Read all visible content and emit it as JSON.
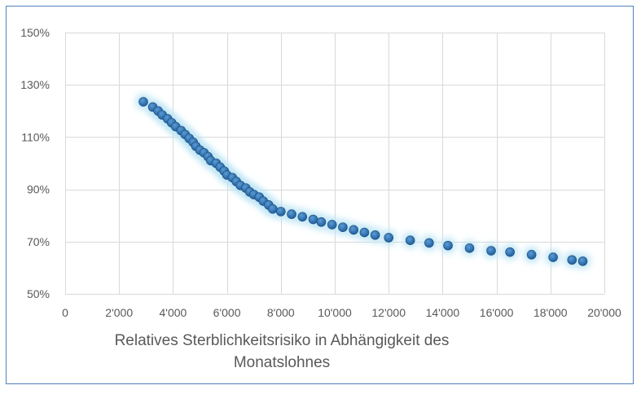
{
  "chart_data": {
    "type": "scatter",
    "xlim": [
      0,
      20000
    ],
    "ylim": [
      50,
      150
    ],
    "x_ticks": [
      0,
      2000,
      4000,
      6000,
      8000,
      10000,
      12000,
      14000,
      16000,
      18000,
      20000
    ],
    "x_tick_labels": [
      "0",
      "2'000",
      "4'000",
      "6'000",
      "8'000",
      "10'000",
      "12'000",
      "14'000",
      "16'000",
      "18'000",
      "20'000"
    ],
    "y_ticks": [
      50,
      70,
      90,
      110,
      130,
      150
    ],
    "y_tick_labels": [
      "50%",
      "70%",
      "90%",
      "110%",
      "130%",
      "150%"
    ],
    "grid": true,
    "marker_color": "#2e75b6",
    "glow_color": "#bde5f5",
    "title": "",
    "caption_lines": [
      "Relatives Sterblichkeitsrisiko in Abhängigkeit des",
      "Monatslohnes"
    ],
    "points": [
      {
        "x": 2900,
        "y": 123.5
      },
      {
        "x": 3250,
        "y": 121.5
      },
      {
        "x": 3450,
        "y": 120
      },
      {
        "x": 3600,
        "y": 118.5
      },
      {
        "x": 3800,
        "y": 117
      },
      {
        "x": 3950,
        "y": 115.5
      },
      {
        "x": 4100,
        "y": 114
      },
      {
        "x": 4300,
        "y": 112.5
      },
      {
        "x": 4450,
        "y": 111
      },
      {
        "x": 4600,
        "y": 109.5
      },
      {
        "x": 4750,
        "y": 108
      },
      {
        "x": 4850,
        "y": 106.5
      },
      {
        "x": 5000,
        "y": 105
      },
      {
        "x": 5150,
        "y": 104
      },
      {
        "x": 5300,
        "y": 102.5
      },
      {
        "x": 5400,
        "y": 101
      },
      {
        "x": 5600,
        "y": 100
      },
      {
        "x": 5750,
        "y": 98.5
      },
      {
        "x": 5900,
        "y": 97
      },
      {
        "x": 6000,
        "y": 95.5
      },
      {
        "x": 6200,
        "y": 94.5
      },
      {
        "x": 6350,
        "y": 93
      },
      {
        "x": 6500,
        "y": 91.5
      },
      {
        "x": 6700,
        "y": 90.5
      },
      {
        "x": 6850,
        "y": 89
      },
      {
        "x": 7000,
        "y": 88
      },
      {
        "x": 7200,
        "y": 87
      },
      {
        "x": 7350,
        "y": 85.5
      },
      {
        "x": 7550,
        "y": 84
      },
      {
        "x": 7700,
        "y": 82.5
      },
      {
        "x": 8000,
        "y": 81.5
      },
      {
        "x": 8400,
        "y": 80.5
      },
      {
        "x": 8800,
        "y": 79.5
      },
      {
        "x": 9200,
        "y": 78.5
      },
      {
        "x": 9500,
        "y": 77.5
      },
      {
        "x": 9900,
        "y": 76.5
      },
      {
        "x": 10300,
        "y": 75.5
      },
      {
        "x": 10700,
        "y": 74.5
      },
      {
        "x": 11100,
        "y": 73.5
      },
      {
        "x": 11500,
        "y": 72.5
      },
      {
        "x": 12000,
        "y": 71.5
      },
      {
        "x": 12800,
        "y": 70.5
      },
      {
        "x": 13500,
        "y": 69.5
      },
      {
        "x": 14200,
        "y": 68.5
      },
      {
        "x": 15000,
        "y": 67.5
      },
      {
        "x": 15800,
        "y": 66.5
      },
      {
        "x": 16500,
        "y": 66
      },
      {
        "x": 17300,
        "y": 65
      },
      {
        "x": 18100,
        "y": 64
      },
      {
        "x": 18800,
        "y": 63
      },
      {
        "x": 19200,
        "y": 62.5
      }
    ]
  }
}
